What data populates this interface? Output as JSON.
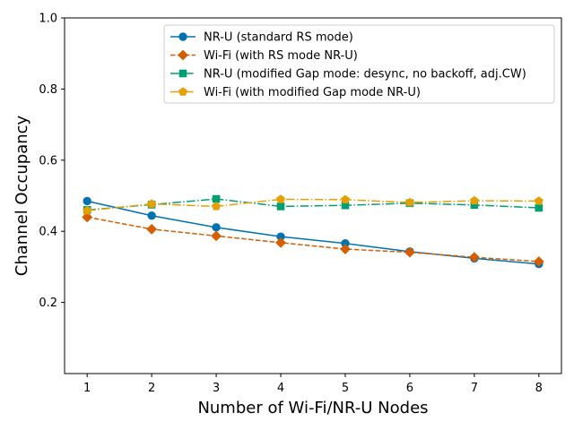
{
  "chart_data": {
    "type": "line",
    "title": "",
    "xlabel": "Number of Wi-Fi/NR-U Nodes",
    "ylabel": "Channel Occupancy",
    "x": [
      1,
      2,
      3,
      4,
      5,
      6,
      7,
      8
    ],
    "xlim": [
      0.65,
      8.35
    ],
    "ylim": [
      0.0,
      1.0
    ],
    "xticks": [
      "1",
      "2",
      "3",
      "4",
      "5",
      "6",
      "7",
      "8"
    ],
    "yticks": [
      "0.2",
      "0.4",
      "0.6",
      "0.8",
      "1.0"
    ],
    "ytick_values": [
      0.2,
      0.4,
      0.6,
      0.8,
      1.0
    ],
    "grid": false,
    "legend_position": "top-right",
    "series": [
      {
        "name": "NR-U (standard RS mode)",
        "values": [
          0.485,
          0.444,
          0.411,
          0.385,
          0.366,
          0.343,
          0.324,
          0.308
        ],
        "color": "#0072b2",
        "linestyle": "solid",
        "marker": "circle"
      },
      {
        "name": "Wi-Fi (with RS mode NR-U)",
        "values": [
          0.44,
          0.406,
          0.387,
          0.368,
          0.35,
          0.341,
          0.327,
          0.315
        ],
        "color": "#d55e00",
        "linestyle": "dashed",
        "marker": "diamond"
      },
      {
        "name": "NR-U (modified Gap mode: desync, no backoff, adj.CW)",
        "values": [
          0.46,
          0.475,
          0.491,
          0.47,
          0.473,
          0.479,
          0.474,
          0.466
        ],
        "color": "#009e73",
        "linestyle": "dashdot",
        "marker": "square"
      },
      {
        "name": "Wi-Fi (with modified Gap mode NR-U)",
        "values": [
          0.458,
          0.477,
          0.47,
          0.49,
          0.489,
          0.481,
          0.486,
          0.485
        ],
        "color": "#e69f00",
        "linestyle": "dashdot",
        "marker": "pentagon"
      }
    ]
  }
}
